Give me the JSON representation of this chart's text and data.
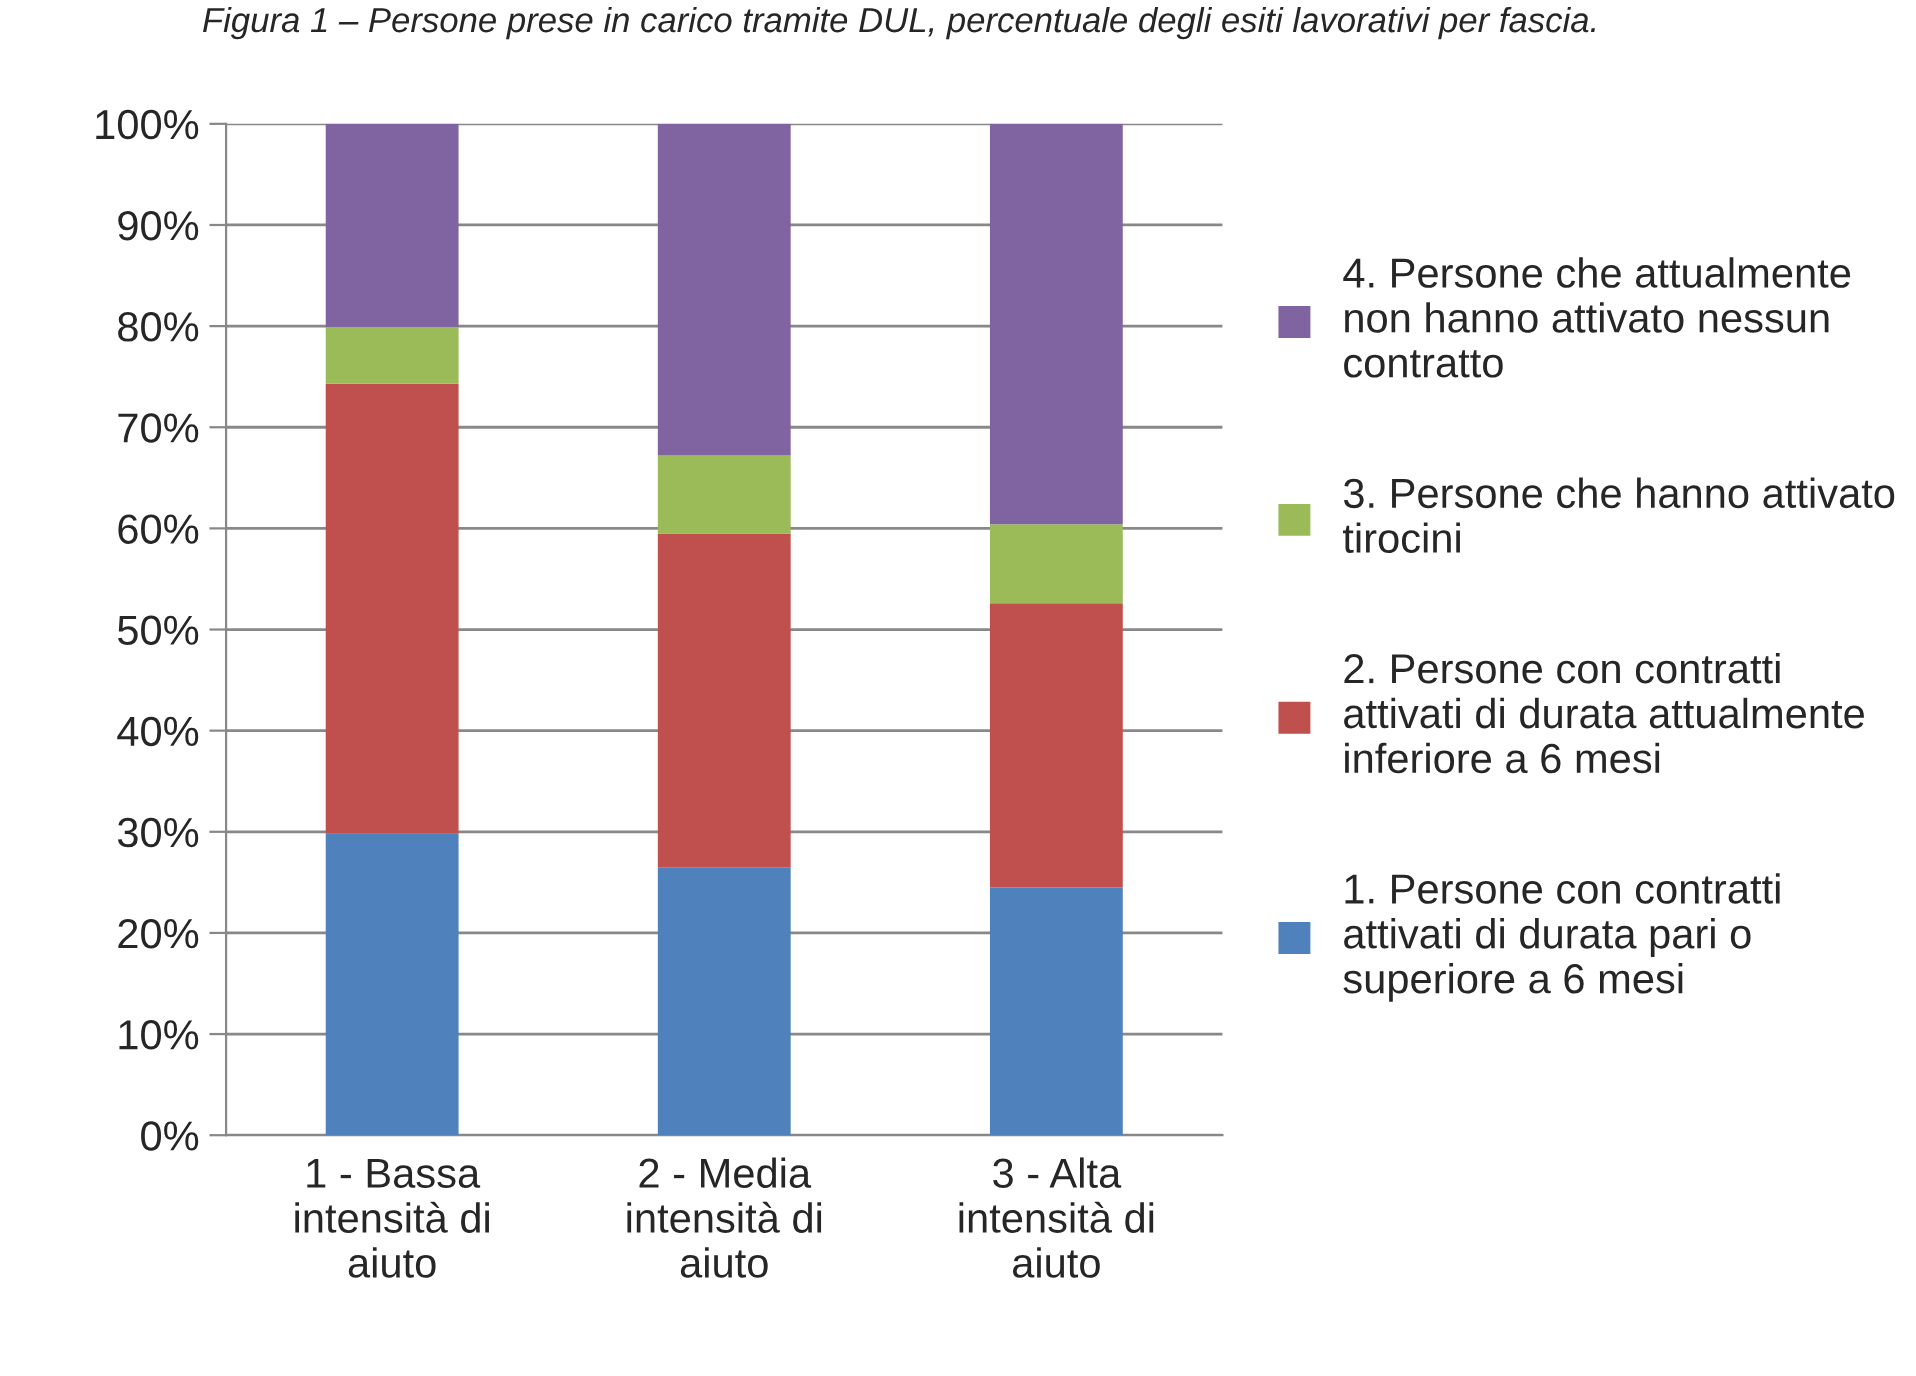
{
  "chart_data": {
    "type": "bar",
    "stacked": true,
    "title": "Figura 1 – Persone prese in carico tramite DUL, percentuale degli esiti lavorativi per fascia.",
    "categories": [
      "1 - Bassa\nintensità di\naiuto",
      "2 - Media\nintensità di\naiuto",
      "3 - Alta\nintensità di\naiuto"
    ],
    "series": [
      {
        "name": "1. Persone con contratti attivati di durata pari o superiore a 6 mesi",
        "color": "#4f81bd",
        "values": [
          29.8,
          26.5,
          24.5
        ]
      },
      {
        "name": "2. Persone con contratti attivati di durata attualmente inferiore a 6 mesi",
        "color": "#c0504d",
        "values": [
          44.5,
          33.0,
          28.1
        ]
      },
      {
        "name": "3. Persone che hanno attivato tirocini",
        "color": "#9bbb59",
        "values": [
          5.6,
          7.7,
          7.8
        ]
      },
      {
        "name": "4. Persone che attualmente non hanno attivato nessun contratto",
        "color": "#8064a2",
        "values": [
          20.1,
          32.8,
          39.6
        ]
      }
    ],
    "ylim": [
      0,
      100
    ],
    "yticks": [
      {
        "value": 0,
        "label": "0%"
      },
      {
        "value": 10,
        "label": "10%"
      },
      {
        "value": 20,
        "label": "20%"
      },
      {
        "value": 30,
        "label": "30%"
      },
      {
        "value": 40,
        "label": "40%"
      },
      {
        "value": 50,
        "label": "50%"
      },
      {
        "value": 60,
        "label": "60%"
      },
      {
        "value": 70,
        "label": "70%"
      },
      {
        "value": 80,
        "label": "80%"
      },
      {
        "value": 90,
        "label": "90%"
      },
      {
        "value": 100,
        "label": "100%"
      }
    ],
    "grid": "y",
    "legend": "right"
  }
}
